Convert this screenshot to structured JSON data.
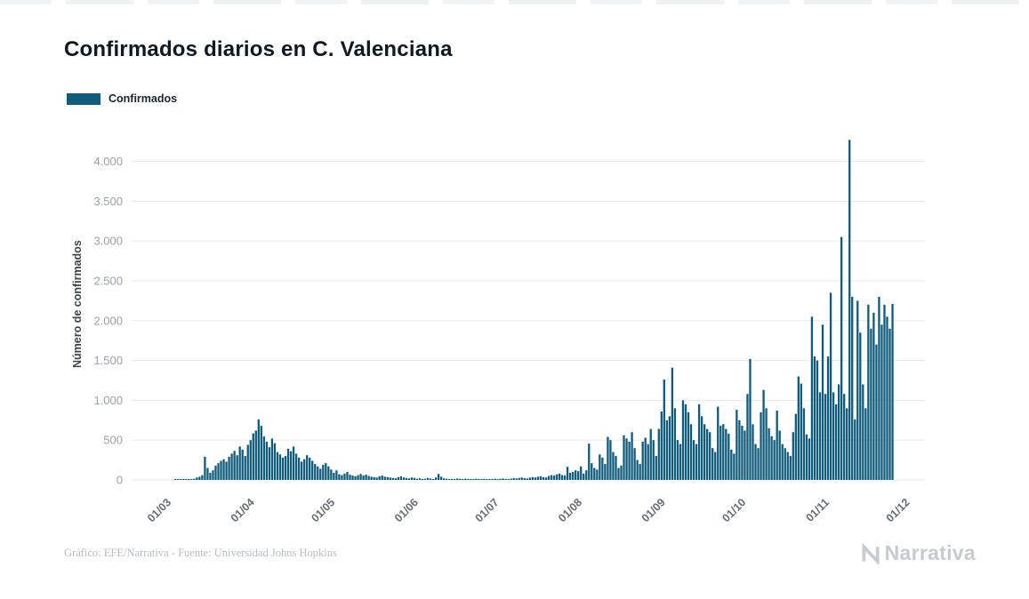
{
  "page": {
    "title": "Confirmados diarios en C. Valenciana",
    "credit": "Gráfico: EFE/Narrativa - Fuente: Universidad Johns Hopkins",
    "brand": "Narrativa"
  },
  "legend": {
    "label": "Confirmados"
  },
  "chart_data": {
    "type": "bar",
    "title": "Confirmados diarios en C. Valenciana",
    "xlabel": "",
    "ylabel": "Número de confirmados",
    "series_name": "Confirmados",
    "bar_color": "#0f5b7c",
    "grid": "horizontal",
    "legend_position": "top-left",
    "x_start": "2020-03-01",
    "x_end": "2020-11-25",
    "frequency": "daily",
    "x_tick_labels": [
      "01/03",
      "01/04",
      "01/05",
      "01/06",
      "01/07",
      "01/08",
      "01/09",
      "01/10",
      "01/11",
      "01/12"
    ],
    "x_tick_day_offsets": [
      0,
      31,
      61,
      92,
      122,
      153,
      184,
      214,
      245,
      275
    ],
    "y_ticks": [
      0,
      500,
      1000,
      1500,
      2000,
      2500,
      3000,
      3500,
      4000
    ],
    "y_tick_labels": [
      "0",
      "500",
      "1.000",
      "1.500",
      "2.000",
      "2.500",
      "3.000",
      "3.500",
      "4.000"
    ],
    "ylim": [
      0,
      4270
    ],
    "values": [
      0,
      0,
      1,
      2,
      1,
      3,
      4,
      6,
      10,
      15,
      30,
      40,
      60,
      290,
      150,
      90,
      120,
      180,
      210,
      240,
      260,
      230,
      290,
      330,
      365,
      310,
      420,
      380,
      300,
      440,
      500,
      585,
      620,
      760,
      680,
      545,
      480,
      410,
      520,
      460,
      350,
      320,
      280,
      300,
      390,
      360,
      420,
      330,
      280,
      230,
      260,
      310,
      280,
      240,
      200,
      170,
      140,
      190,
      210,
      170,
      130,
      90,
      120,
      70,
      60,
      80,
      100,
      65,
      55,
      45,
      60,
      75,
      55,
      65,
      50,
      40,
      35,
      30,
      45,
      55,
      40,
      35,
      30,
      25,
      20,
      35,
      45,
      30,
      25,
      20,
      30,
      25,
      15,
      20,
      10,
      15,
      25,
      18,
      12,
      30,
      75,
      40,
      20,
      15,
      10,
      8,
      12,
      18,
      14,
      10,
      16,
      12,
      8,
      10,
      15,
      12,
      9,
      14,
      10,
      7,
      12,
      15,
      10,
      14,
      18,
      12,
      9,
      16,
      22,
      18,
      25,
      30,
      22,
      18,
      28,
      35,
      30,
      40,
      45,
      35,
      30,
      50,
      60,
      55,
      70,
      80,
      60,
      55,
      165,
      90,
      100,
      120,
      110,
      170,
      80,
      120,
      455,
      210,
      150,
      130,
      320,
      280,
      200,
      540,
      500,
      350,
      300,
      150,
      180,
      560,
      520,
      480,
      600,
      400,
      250,
      200,
      480,
      530,
      450,
      640,
      500,
      300,
      640,
      860,
      1260,
      750,
      800,
      1410,
      900,
      500,
      450,
      1000,
      950,
      850,
      700,
      500,
      450,
      950,
      800,
      700,
      640,
      600,
      400,
      350,
      920,
      680,
      700,
      640,
      580,
      380,
      330,
      880,
      750,
      680,
      620,
      1080,
      1520,
      700,
      450,
      400,
      850,
      1130,
      900,
      650,
      550,
      500,
      870,
      620,
      450,
      400,
      350,
      300,
      600,
      830,
      1300,
      1210,
      900,
      570,
      520,
      2050,
      1550,
      1500,
      1100,
      1950,
      1080,
      1550,
      2350,
      1100,
      950,
      1200,
      3050,
      1080,
      900,
      4270,
      2300,
      760,
      2250,
      1850,
      1200,
      900,
      2200,
      1900,
      2100,
      1700,
      2300,
      1950,
      2200,
      2050,
      1900,
      2210
    ]
  }
}
